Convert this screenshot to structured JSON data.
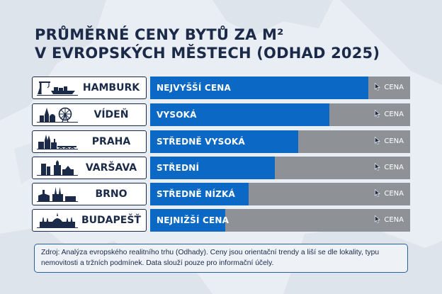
{
  "title_lines": [
    "PRŮMĚRNÉ CENY BYTŮ ZA M²",
    "V EVROPSKÝCH MĚSTECH (ODHAD 2025)"
  ],
  "price_label": "CENA",
  "source": "Zdroj: Analýza evropského realitního trhu (Odhady). Ceny jsou orientační trendy a liší se dle lokality, typu nemovitosti a tržních podmínek. Data slouží pouze pro informační účely.",
  "colors": {
    "bar": "#0b68c4",
    "track": "#8e9196",
    "ink": "#1b2a48"
  },
  "chart_data": {
    "type": "bar",
    "orientation": "horizontal",
    "categories": [
      "HAMBURK",
      "VÍDEŇ",
      "PRAHA",
      "VARŠAVA",
      "BRNO",
      "BUDAPEŠŤ"
    ],
    "icons": [
      "port-crane-ship-icon",
      "vienna-ferris-wheel-icon",
      "prague-castle-bridge-icon",
      "warsaw-skyline-icon",
      "brno-cathedral-icon",
      "budapest-parliament-icon"
    ],
    "value_labels": [
      "NEJVYŠŠÍ CENA",
      "VYSOKÁ",
      "STŘEDNĚ VYSOKÁ",
      "STŘEDNÍ",
      "STŘEDNĚ NÍZKÁ",
      "NEJNIŽŠÍ CENA"
    ],
    "values": [
      0.84,
      0.69,
      0.57,
      0.48,
      0.38,
      0.29
    ],
    "value_unit": "fraction of full bar",
    "title": "PRŮMĚRNÉ CENY BYTŮ ZA M² V EVROPSKÝCH MĚSTECH (ODHAD 2025)",
    "xlabel": "",
    "ylabel": "",
    "xlim": [
      0,
      1
    ],
    "legend": "none",
    "grid": false
  }
}
